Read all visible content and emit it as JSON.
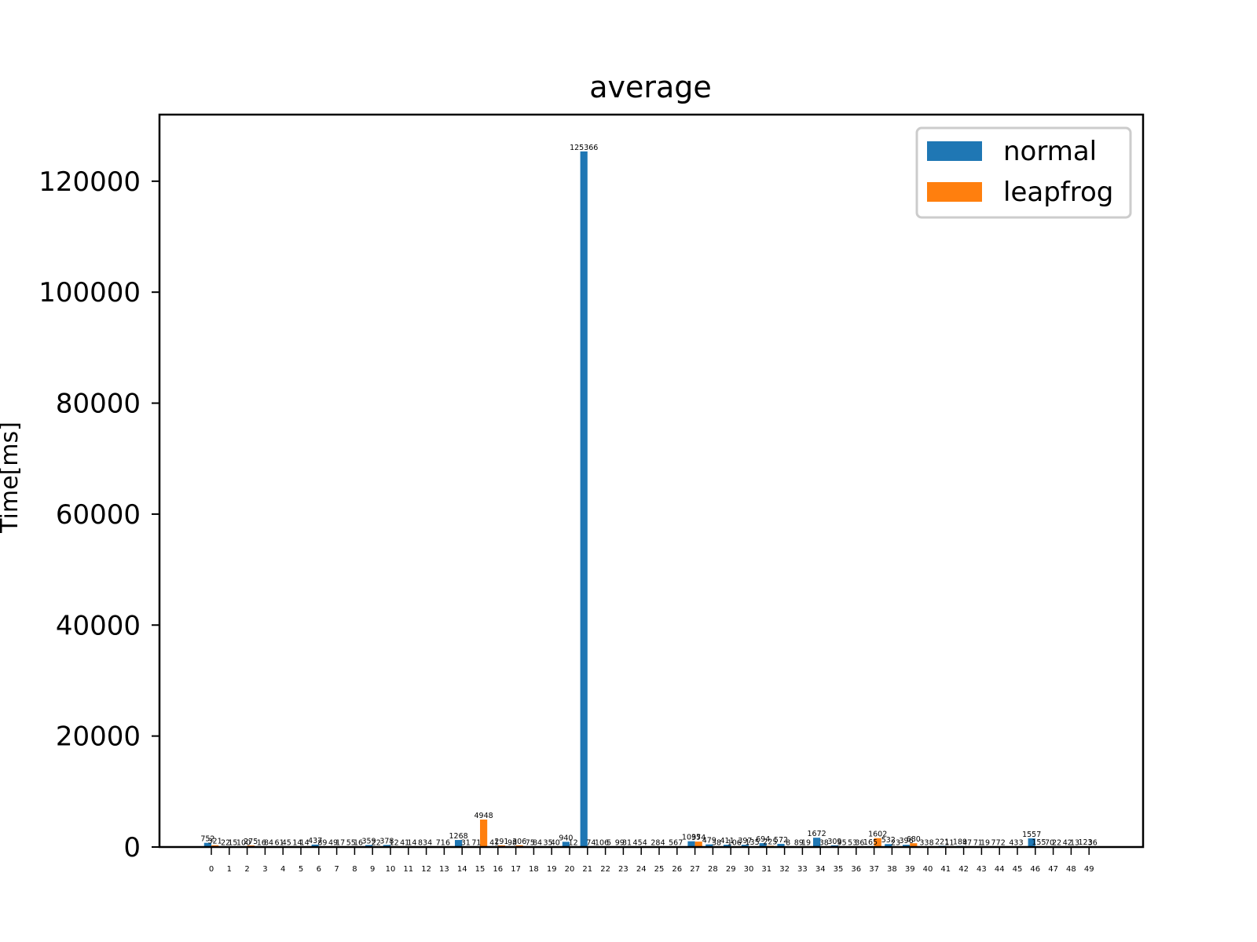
{
  "chart_data": {
    "type": "bar",
    "title": "average",
    "ylabel": "Time[ms]",
    "xlabel": "",
    "ylim": [
      0,
      132000
    ],
    "yticks": [
      0,
      20000,
      40000,
      60000,
      80000,
      100000,
      120000
    ],
    "grid": false,
    "legend_position": "top-right",
    "categories": [
      "0",
      "1",
      "2",
      "3",
      "4",
      "5",
      "6",
      "7",
      "8",
      "9",
      "10",
      "11",
      "12",
      "13",
      "14",
      "15",
      "16",
      "17",
      "18",
      "19",
      "20",
      "21",
      "22",
      "23",
      "24",
      "25",
      "26",
      "27",
      "28",
      "29",
      "30",
      "31",
      "32",
      "33",
      "34",
      "35",
      "36",
      "37",
      "38",
      "39",
      "40",
      "41",
      "42",
      "43",
      "44",
      "45",
      "46",
      "47",
      "48",
      "49"
    ],
    "series": [
      {
        "name": "normal",
        "color": "#1f77b4",
        "values": [
          752,
          22,
          100,
          16,
          61,
          14,
          437,
          49,
          55,
          359,
          378,
          41,
          83,
          71,
          1268,
          71,
          41,
          98,
          75,
          35,
          940,
          125366,
          106,
          99,
          45,
          28,
          56,
          1035,
          479,
          411,
          397,
          694,
          572,
          89,
          1672,
          309,
          53,
          165,
          532,
          396,
          33,
          221,
          189,
          71,
          77,
          43,
          1557,
          70,
          42,
          123
        ]
      },
      {
        "name": "leapfrog",
        "color": "#ff7f0e",
        "values": [
          321,
          15,
          275,
          84,
          45,
          14,
          89,
          17,
          16,
          22,
          12,
          14,
          4,
          6,
          31,
          4948,
          291,
          306,
          84,
          40,
          12,
          74,
          5,
          31,
          4,
          4,
          7,
          974,
          38,
          106,
          135,
          225,
          8,
          19,
          38,
          95,
          36,
          1602,
          23,
          680,
          8,
          11,
          47,
          19,
          2,
          3,
          155,
          22,
          13,
          36
        ]
      }
    ]
  }
}
